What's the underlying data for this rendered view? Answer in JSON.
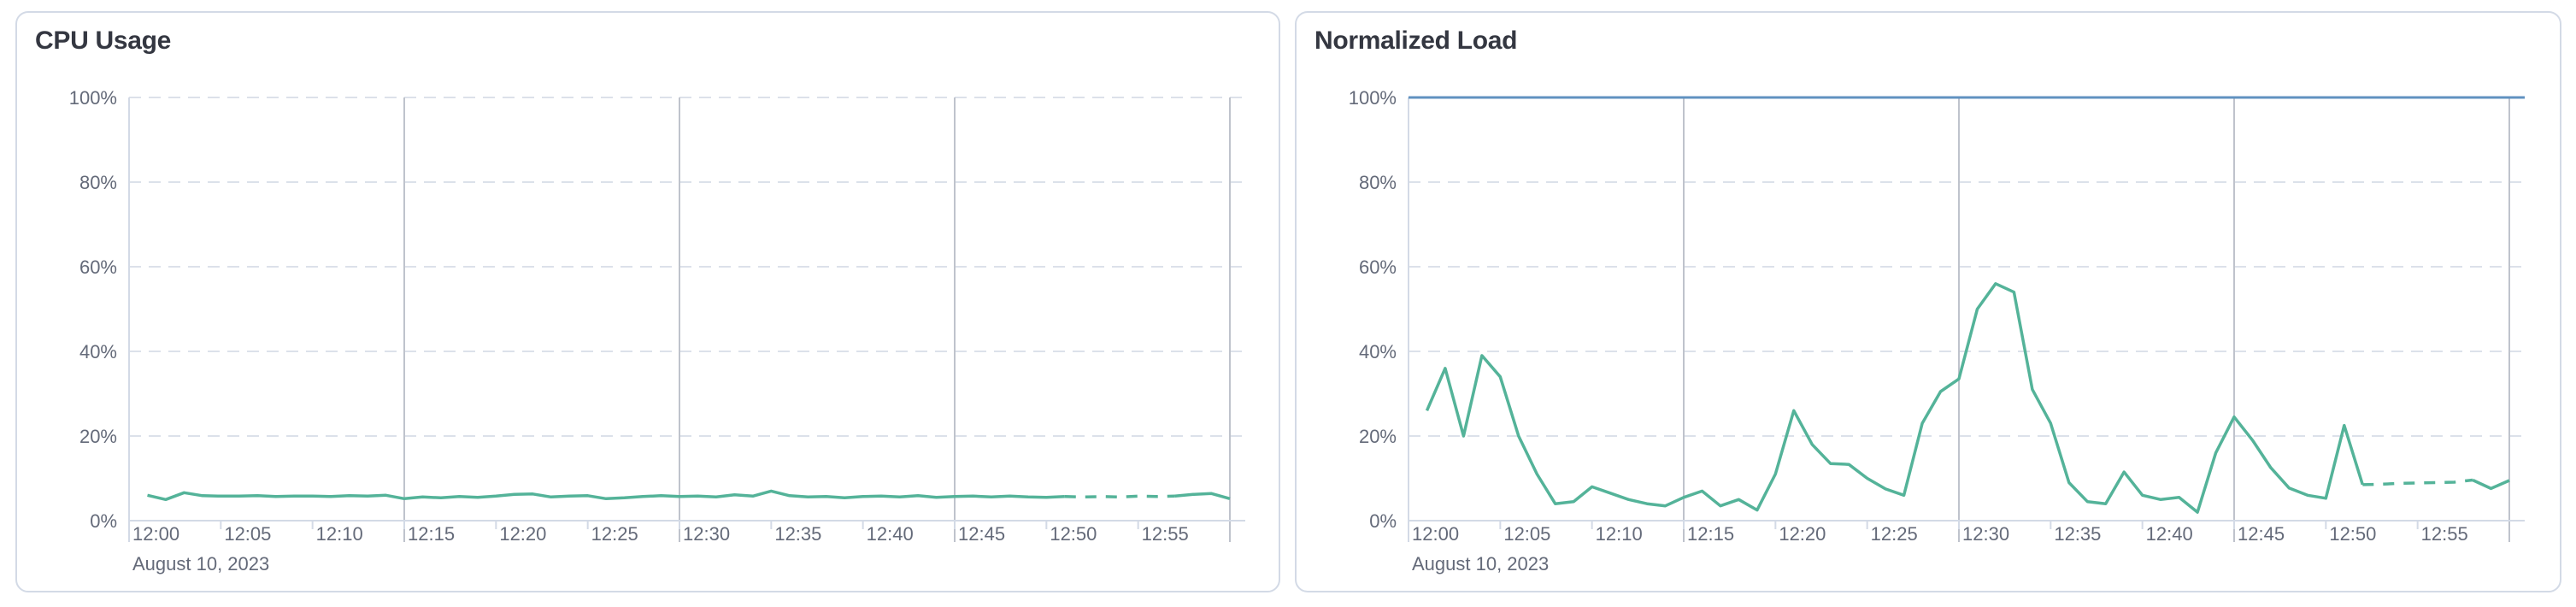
{
  "page": {
    "background_color": "#ffffff",
    "panel_border_color": "#d3dae6"
  },
  "colors": {
    "series_green": "#54b399",
    "reference_blue": "#6092c0",
    "grid_dashed": "#dce1ea",
    "grid_vertical": "#bfc3cc",
    "axis_line": "#d3dae6",
    "tick_text": "#646a79",
    "title_text": "#343741"
  },
  "chart_data": [
    {
      "type": "line",
      "title": "CPU Usage",
      "x_date_label": "August 10, 2023",
      "x_tick_labels": [
        "12:00",
        "12:05",
        "12:10",
        "12:15",
        "12:20",
        "12:25",
        "12:30",
        "12:35",
        "12:40",
        "12:45",
        "12:50",
        "12:55"
      ],
      "grid_vertical_times": [
        "12:15",
        "12:30",
        "12:45",
        "13:00"
      ],
      "y_tick_labels": [
        "0%",
        "20%",
        "40%",
        "60%",
        "80%",
        "100%"
      ],
      "ylim": [
        0,
        100
      ],
      "y_unit": "%",
      "legend": "none",
      "x": [
        "12:01",
        "12:02",
        "12:03",
        "12:04",
        "12:05",
        "12:06",
        "12:07",
        "12:08",
        "12:09",
        "12:10",
        "12:11",
        "12:12",
        "12:13",
        "12:14",
        "12:15",
        "12:16",
        "12:17",
        "12:18",
        "12:19",
        "12:20",
        "12:21",
        "12:22",
        "12:23",
        "12:24",
        "12:25",
        "12:26",
        "12:27",
        "12:28",
        "12:29",
        "12:30",
        "12:31",
        "12:32",
        "12:33",
        "12:34",
        "12:35",
        "12:36",
        "12:37",
        "12:38",
        "12:39",
        "12:40",
        "12:41",
        "12:42",
        "12:43",
        "12:44",
        "12:45",
        "12:46",
        "12:47",
        "12:48",
        "12:49",
        "12:50",
        "12:51",
        "12:52",
        "12:53",
        "12:54",
        "12:55",
        "12:56",
        "12:57",
        "12:58",
        "12:59",
        "13:00"
      ],
      "series": [
        {
          "name": "CPU Usage",
          "color": "#54b399",
          "dash_start": "12:51",
          "dash_end": "12:57",
          "dashed_segment_meaning": "trailing provisional data drawn dashed",
          "values": [
            6.0,
            5.0,
            6.6,
            5.9,
            5.8,
            5.8,
            5.9,
            5.7,
            5.8,
            5.8,
            5.7,
            5.9,
            5.8,
            6.0,
            5.2,
            5.6,
            5.4,
            5.7,
            5.5,
            5.8,
            6.2,
            6.3,
            5.6,
            5.8,
            5.9,
            5.2,
            5.4,
            5.7,
            5.9,
            5.7,
            5.8,
            5.6,
            6.1,
            5.8,
            7.0,
            5.9,
            5.6,
            5.7,
            5.4,
            5.7,
            5.8,
            5.6,
            5.9,
            5.5,
            5.7,
            5.8,
            5.6,
            5.8,
            5.6,
            5.5,
            5.7,
            5.6,
            5.7,
            5.6,
            5.8,
            5.7,
            5.8,
            6.2,
            6.4,
            5.2
          ]
        }
      ]
    },
    {
      "type": "line",
      "title": "Normalized Load",
      "x_date_label": "August 10, 2023",
      "x_tick_labels": [
        "12:00",
        "12:05",
        "12:10",
        "12:15",
        "12:20",
        "12:25",
        "12:30",
        "12:35",
        "12:40",
        "12:45",
        "12:50",
        "12:55"
      ],
      "grid_vertical_times": [
        "12:15",
        "12:30",
        "12:45",
        "13:00"
      ],
      "y_tick_labels": [
        "0%",
        "20%",
        "40%",
        "60%",
        "80%",
        "100%"
      ],
      "ylim": [
        0,
        100
      ],
      "y_unit": "%",
      "legend": "none",
      "x": [
        "12:01",
        "12:02",
        "12:03",
        "12:04",
        "12:05",
        "12:06",
        "12:07",
        "12:08",
        "12:09",
        "12:10",
        "12:11",
        "12:12",
        "12:13",
        "12:14",
        "12:15",
        "12:16",
        "12:17",
        "12:18",
        "12:19",
        "12:20",
        "12:21",
        "12:22",
        "12:23",
        "12:24",
        "12:25",
        "12:26",
        "12:27",
        "12:28",
        "12:29",
        "12:30",
        "12:31",
        "12:32",
        "12:33",
        "12:34",
        "12:35",
        "12:36",
        "12:37",
        "12:38",
        "12:39",
        "12:40",
        "12:41",
        "12:42",
        "12:43",
        "12:44",
        "12:45",
        "12:46",
        "12:47",
        "12:48",
        "12:49",
        "12:50",
        "12:51",
        "12:52",
        "12:53",
        "12:54",
        "12:55",
        "12:56",
        "12:57",
        "12:58",
        "12:59",
        "13:00"
      ],
      "series": [
        {
          "name": "Normalized Load",
          "color": "#54b399",
          "dash_start": "12:52",
          "dash_end": "12:58",
          "dashed_segment_meaning": "trailing provisional data drawn dashed",
          "values": [
            26,
            36,
            20,
            39,
            34,
            20,
            11,
            4,
            4.5,
            8,
            6.5,
            5,
            4,
            3.5,
            5.5,
            7,
            3.5,
            5,
            2.5,
            11,
            26,
            18,
            13.5,
            13.3,
            10,
            7.5,
            6,
            23,
            30.5,
            33.5,
            50,
            56,
            54,
            31,
            23,
            9,
            4.5,
            4,
            11.5,
            6,
            5,
            5.5,
            2,
            16,
            24.5,
            19,
            12.5,
            7.7,
            6,
            5.3,
            22.5,
            8.5,
            8.6,
            8.8,
            8.9,
            9,
            9.1,
            9.6,
            7.6,
            9.5
          ]
        },
        {
          "name": "100% reference line",
          "color": "#6092c0",
          "constant_value": 100
        }
      ]
    }
  ]
}
